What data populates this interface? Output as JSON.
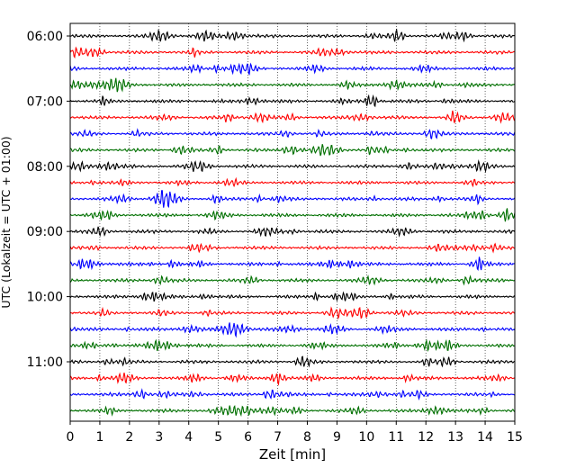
{
  "chart_data": {
    "type": "line",
    "xlabel": "Zeit  [min]",
    "ylabel": "UTC (Lokalzeit = UTC + 01:00)",
    "xlim": [
      0,
      15
    ],
    "x_ticks": [
      0,
      1,
      2,
      3,
      4,
      5,
      6,
      7,
      8,
      9,
      10,
      11,
      12,
      13,
      14,
      15
    ],
    "y_tick_labels": [
      "06:00",
      "07:00",
      "08:00",
      "09:00",
      "10:00",
      "11:00"
    ],
    "trace_start_times": [
      "06:00",
      "06:15",
      "06:30",
      "06:45",
      "07:00",
      "07:15",
      "07:30",
      "07:45",
      "08:00",
      "08:15",
      "08:30",
      "08:45",
      "09:00",
      "09:15",
      "09:30",
      "09:45",
      "10:00",
      "10:15",
      "10:30",
      "10:45",
      "11:00",
      "11:15",
      "11:30",
      "11:45"
    ],
    "trace_colors": [
      "#000000",
      "#ff0000",
      "#0000ff",
      "#007000"
    ],
    "trace_duration_min": 15,
    "grid": "vertical-dotted"
  }
}
